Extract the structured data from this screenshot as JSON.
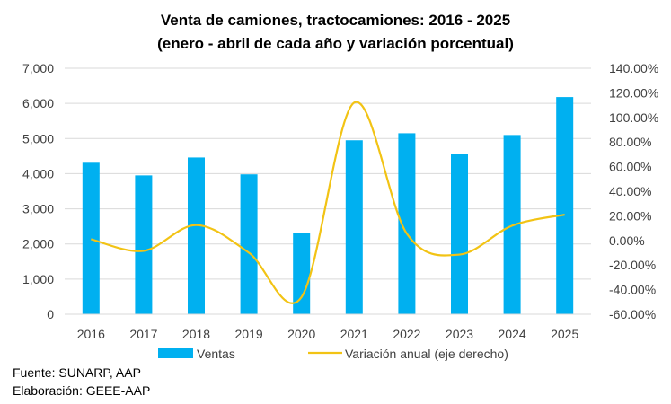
{
  "chart_data": {
    "type": "bar",
    "title": "Venta de camiones, tractocamiones: 2016 - 2025",
    "subtitle": "(enero - abril de cada año y variación porcentual)",
    "categories": [
      "2016",
      "2017",
      "2018",
      "2019",
      "2020",
      "2021",
      "2022",
      "2023",
      "2024",
      "2025"
    ],
    "series": [
      {
        "name": "Ventas",
        "type": "bar",
        "axis": "left",
        "color": "#00B0F0",
        "values": [
          4310,
          3950,
          4460,
          3980,
          2310,
          4950,
          5150,
          4570,
          5100,
          6180
        ]
      },
      {
        "name": "Variación anual (eje derecho)",
        "type": "line",
        "axis": "right",
        "color": "#F2C314",
        "values": [
          1.0,
          -8.5,
          12.5,
          -10.0,
          -46.0,
          112.0,
          5.5,
          -11.5,
          12.0,
          21.0
        ]
      }
    ],
    "y_left": {
      "min": 0,
      "max": 7000,
      "step": 1000,
      "tick_labels": [
        "0",
        "1,000",
        "2,000",
        "3,000",
        "4,000",
        "5,000",
        "6,000",
        "7,000"
      ]
    },
    "y_right": {
      "min": -60,
      "max": 140,
      "step": 20,
      "tick_labels": [
        "-60.00%",
        "-40.00%",
        "-20.00%",
        "0.00%",
        "20.00%",
        "40.00%",
        "60.00%",
        "80.00%",
        "100.00%",
        "120.00%",
        "140.00%"
      ]
    },
    "grid": true,
    "legend": "bottom"
  },
  "footer": {
    "source": "Fuente: SUNARP, AAP",
    "elaboration": "Elaboración: GEEE-AAP"
  }
}
